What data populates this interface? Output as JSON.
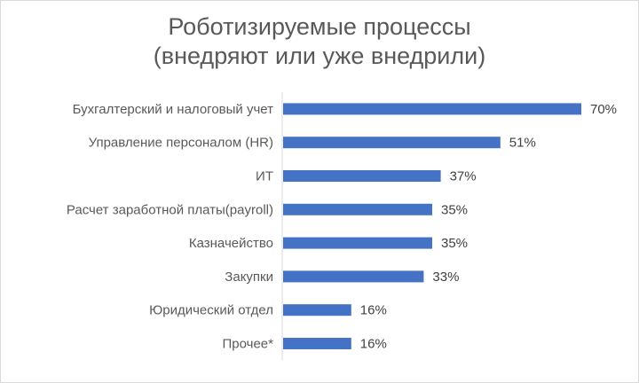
{
  "chart_data": {
    "type": "bar",
    "orientation": "horizontal",
    "title_line1": "Роботизируемые процессы",
    "title_line2": "(внедряют или  уже внедрили)",
    "categories": [
      "Бухгалтерский  и налоговый учет",
      "Управление персоналом (HR)",
      "ИТ",
      "Расчет заработной платы(payroll)",
      "Казначейство",
      "Закупки",
      "Юридический отдел",
      "Прочее*"
    ],
    "values": [
      70,
      51,
      37,
      35,
      35,
      33,
      16,
      16
    ],
    "value_labels": [
      "70%",
      "51%",
      "37%",
      "35%",
      "35%",
      "33%",
      "16%",
      "16%"
    ],
    "unit": "%",
    "xlim": [
      0,
      80
    ],
    "grid": false,
    "legend": "none",
    "bar_color": "#4472C4"
  }
}
